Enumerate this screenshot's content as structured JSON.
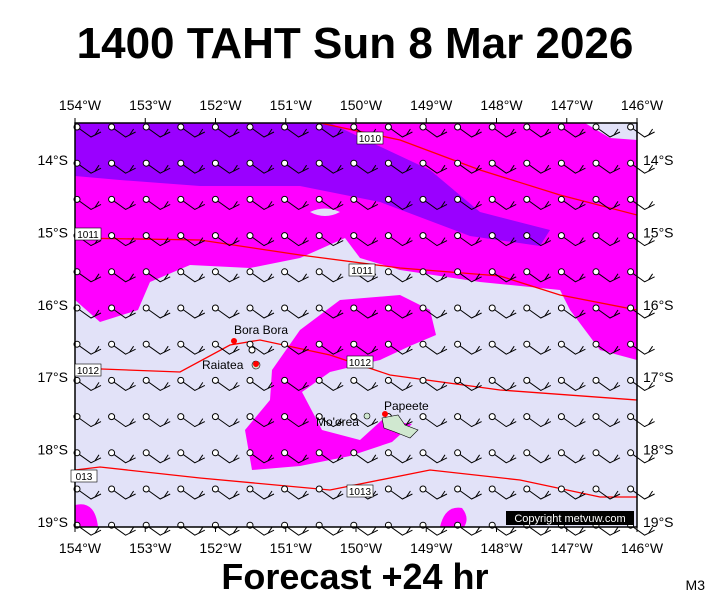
{
  "header": {
    "title": "1400 TAHT Sun 8 Mar 2026"
  },
  "map": {
    "lon_labels": [
      "154°W",
      "153°W",
      "152°W",
      "151°W",
      "150°W",
      "149°W",
      "148°W",
      "147°W",
      "146°W"
    ],
    "lat_labels": [
      "14°S",
      "15°S",
      "16°S",
      "17°S",
      "18°S",
      "19°S"
    ],
    "isobar_labels": [
      "1010",
      "1011",
      "1011",
      "1012",
      "1012",
      "013",
      "1013"
    ],
    "places": [
      "Bora Bora",
      "Raiatea",
      "Mo'orea",
      "Papeete"
    ],
    "copyright": "Copyright metvuw.com"
  },
  "footer": {
    "subtitle": "Forecast +24 hr",
    "code": "M3"
  }
}
